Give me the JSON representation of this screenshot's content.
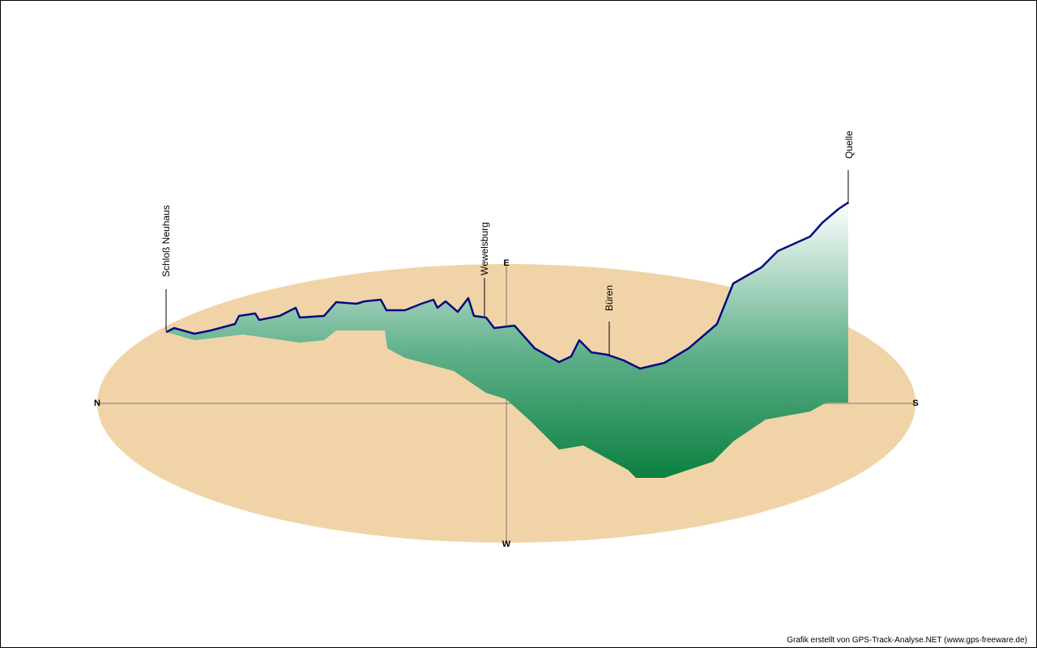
{
  "compass": {
    "north": "N",
    "south": "S",
    "east": "E",
    "west": "W"
  },
  "waypoints": [
    "Schloß Neuhaus",
    "Wewelsburg",
    "Büren",
    "Quelle"
  ],
  "credit": "Grafik erstellt von GPS-Track-Analyse.NET (www.gps-freeware.de)"
}
